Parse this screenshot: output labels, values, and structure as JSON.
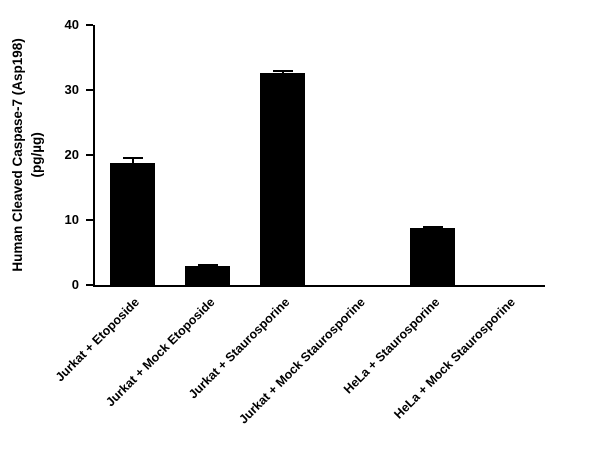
{
  "chart_data": {
    "type": "bar",
    "title": "",
    "xlabel": "",
    "ylabel_line1": "Human Cleaved Caspase-7 (Asp198)",
    "ylabel_line2": "(pg/µg)",
    "categories": [
      "Jurkat + Etoposide",
      "Jurkat + Mock Etoposide",
      "Jurkat + Staurosporine",
      "Jurkat + Mock Staurosporine",
      "HeLa + Staurosporine",
      "HeLa + Mock Staurosporine"
    ],
    "values": [
      18.8,
      3.0,
      32.6,
      0,
      8.7,
      0
    ],
    "errors": [
      0.7,
      0.15,
      0.3,
      0,
      0.25,
      0
    ],
    "ylim": [
      0,
      40
    ],
    "yticks": [
      0,
      10,
      20,
      30,
      40
    ],
    "bar_color": "#000000",
    "background": "#ffffff",
    "grid": false,
    "legend": false
  }
}
